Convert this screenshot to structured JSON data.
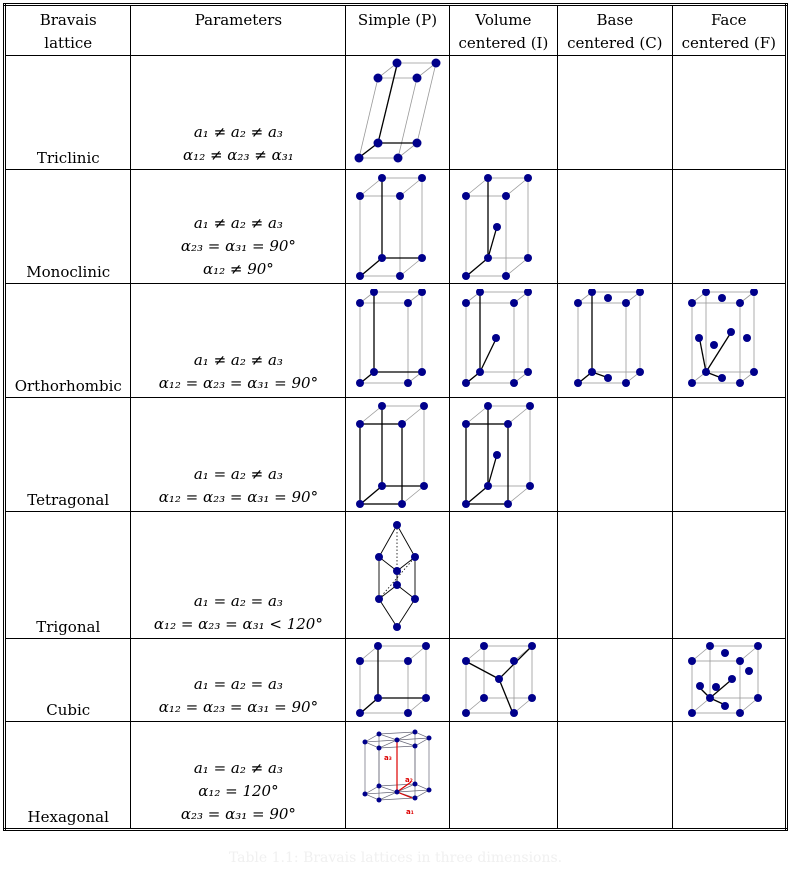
{
  "headers": {
    "col1_line1": "Bravais",
    "col1_line2": "lattice",
    "col2": "Parameters",
    "col3": "Simple (P)",
    "col4_line1": "Volume",
    "col4_line2": "centered (I)",
    "col5_line1": "Base",
    "col5_line2": "centered (C)",
    "col6_line1": "Face",
    "col6_line2": "centered (F)"
  },
  "rows": [
    {
      "name": "Triclinic",
      "p1": "a₁ ≠ a₂ ≠ a₃",
      "p2": "α₁₂ ≠ α₂₃ ≠ α₃₁",
      "p3": ""
    },
    {
      "name": "Monoclinic",
      "p1": "a₁ ≠ a₂ ≠ a₃",
      "p2": "α₂₃ = α₃₁ = 90°",
      "p3": "α₁₂ ≠ 90°"
    },
    {
      "name": "Orthorhombic",
      "p1": "a₁ ≠ a₂ ≠ a₃",
      "p2": "α₁₂ = α₂₃ = α₃₁ = 90°",
      "p3": ""
    },
    {
      "name": "Tetragonal",
      "p1": "a₁ = a₂ ≠ a₃",
      "p2": "α₁₂ = α₂₃ = α₃₁ = 90°",
      "p3": ""
    },
    {
      "name": "Trigonal",
      "p1": "a₁ = a₂ = a₃",
      "p2": "α₁₂ = α₂₃ = α₃₁ < 120°",
      "p3": ""
    },
    {
      "name": "Cubic",
      "p1": "a₁ = a₂ = a₃",
      "p2": "α₁₂ = α₂₃ = α₃₁ = 90°",
      "p3": ""
    },
    {
      "name": "Hexagonal",
      "p1": "a₁ = a₂ ≠ a₃",
      "p2": "α₁₂ = 120°",
      "p3": "α₂₃ = α₃₁ = 90°"
    }
  ],
  "hex_labels": {
    "a1": "a₁",
    "a2": "a₂",
    "a3": "a₃"
  },
  "caption": "Table 1.1: Bravais lattices in three dimensions.",
  "colors": {
    "atom": "#00008b",
    "vector_red": "#dd0000",
    "edge": "#999999"
  }
}
